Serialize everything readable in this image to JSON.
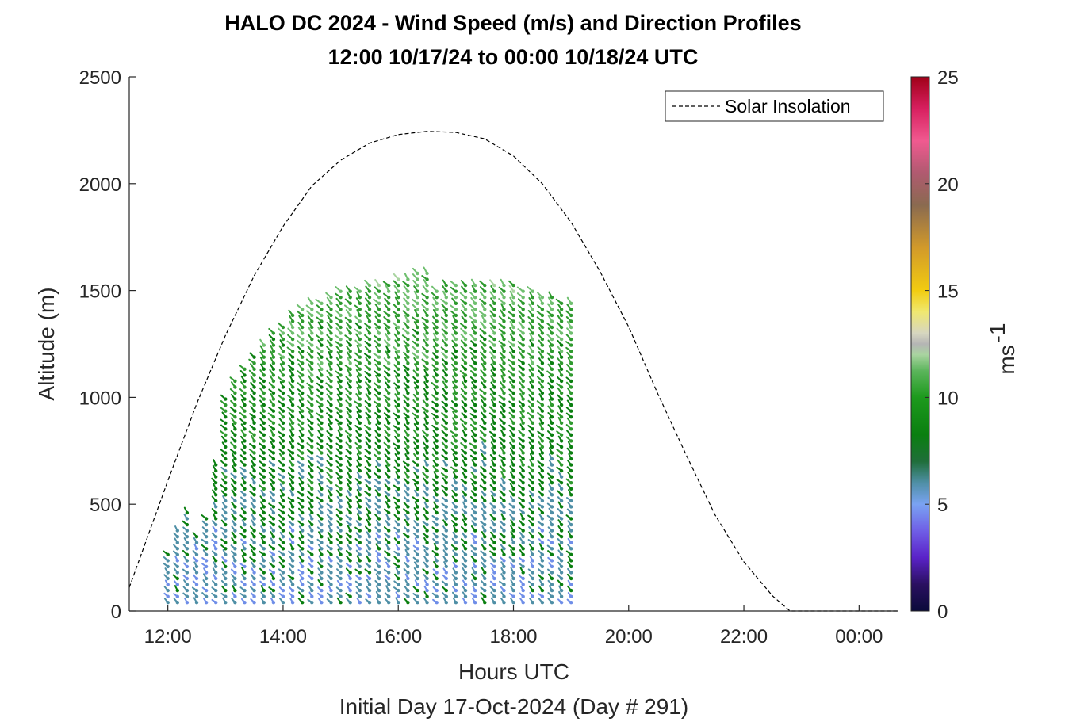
{
  "chart_data": {
    "type": "quiver-profile",
    "title": "HALO DC 2024 - Wind Speed (m/s) and Direction Profiles",
    "subtitle": "12:00 10/17/24 to 00:00 10/18/24  UTC",
    "xlabel": "Hours UTC",
    "xlabel2": "Initial Day 17-Oct-2024 (Day # 291)",
    "ylabel": "Altitude (m)",
    "xlim": [
      11.33,
      24.67
    ],
    "ylim": [
      0,
      2500
    ],
    "x_ticks": [
      {
        "value": 12,
        "label": "12:00"
      },
      {
        "value": 14,
        "label": "14:00"
      },
      {
        "value": 16,
        "label": "16:00"
      },
      {
        "value": 18,
        "label": "18:00"
      },
      {
        "value": 20,
        "label": "20:00"
      },
      {
        "value": 22,
        "label": "22:00"
      },
      {
        "value": 24,
        "label": "00:00"
      }
    ],
    "y_ticks": [
      {
        "value": 0,
        "label": "0"
      },
      {
        "value": 500,
        "label": "500"
      },
      {
        "value": 1000,
        "label": "1000"
      },
      {
        "value": 1500,
        "label": "1500"
      },
      {
        "value": 2000,
        "label": "2000"
      },
      {
        "value": 2500,
        "label": "2500"
      }
    ],
    "colorbar": {
      "label": "ms",
      "label_exponent": "-1",
      "range": [
        0,
        25
      ],
      "ticks": [
        {
          "value": 0,
          "label": "0"
        },
        {
          "value": 5,
          "label": "5"
        },
        {
          "value": 10,
          "label": "10"
        },
        {
          "value": 15,
          "label": "15"
        },
        {
          "value": 20,
          "label": "20"
        },
        {
          "value": 25,
          "label": "25"
        }
      ]
    },
    "legend": {
      "position": "top-right",
      "entries": [
        {
          "name": "Solar Insolation",
          "style": "dashed",
          "color": "#000000"
        }
      ]
    },
    "solar_insolation": {
      "x": [
        11.33,
        12.0,
        12.5,
        13.0,
        13.5,
        14.0,
        14.5,
        15.0,
        15.5,
        16.0,
        16.5,
        17.0,
        17.5,
        18.0,
        18.5,
        19.0,
        19.5,
        20.0,
        20.5,
        21.0,
        21.5,
        22.0,
        22.5,
        22.8,
        23.0,
        24.67
      ],
      "y": [
        110,
        610,
        970,
        1290,
        1570,
        1800,
        1990,
        2110,
        2190,
        2230,
        2245,
        2240,
        2210,
        2130,
        2000,
        1820,
        1590,
        1330,
        1020,
        730,
        450,
        230,
        70,
        0,
        0,
        0
      ]
    },
    "profiles": {
      "time_step_h": 0.1667,
      "start_hour": 12.0,
      "top_altitudes_m": [
        290,
        400,
        480,
        360,
        450,
        700,
        1000,
        1100,
        1150,
        1200,
        1250,
        1300,
        1350,
        1400,
        1420,
        1440,
        1460,
        1480,
        1500,
        1510,
        1520,
        1530,
        1540,
        1550,
        1560,
        1570,
        1580,
        1590,
        1520,
        1530,
        1540,
        1540,
        1550,
        1550,
        1540,
        1540,
        1530,
        1520,
        1500,
        1480,
        1470,
        1460,
        1450
      ],
      "altitude_step_m": 28,
      "typical_speed_ms": 8,
      "typical_direction_deg": 320
    }
  }
}
